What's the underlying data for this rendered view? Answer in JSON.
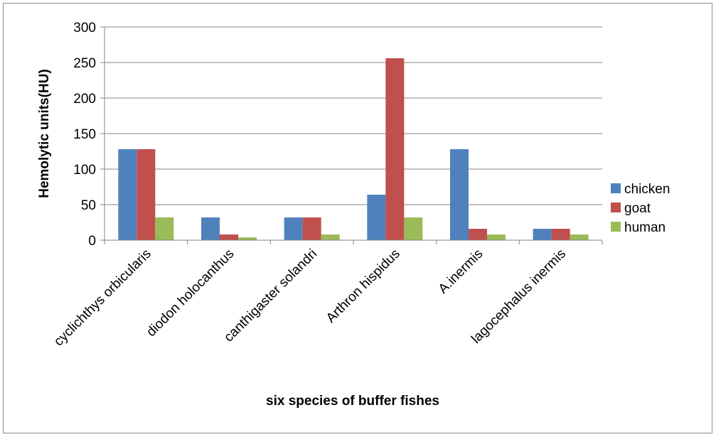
{
  "chart_data": {
    "type": "bar",
    "title": "",
    "xlabel": "six species of buffer fishes",
    "ylabel": "Hemolytic units(HU)",
    "ylim": [
      0,
      300
    ],
    "yticks": [
      0,
      50,
      100,
      150,
      200,
      250,
      300
    ],
    "grid": true,
    "legend_position": "right",
    "categories": [
      "cyclichthys orbicularis",
      "diodon holocanthus",
      "canthigaster solandri",
      "Arthron hispidus",
      "A.inermis",
      "lagocephalus inermis"
    ],
    "series": [
      {
        "name": "chicken",
        "color": "#4f81bd",
        "values": [
          128,
          32,
          32,
          64,
          128,
          16
        ]
      },
      {
        "name": "goat",
        "color": "#c0504d",
        "values": [
          128,
          8,
          32,
          256,
          16,
          16
        ]
      },
      {
        "name": "human",
        "color": "#9bbb59",
        "values": [
          32,
          4,
          8,
          32,
          8,
          8
        ]
      }
    ]
  }
}
